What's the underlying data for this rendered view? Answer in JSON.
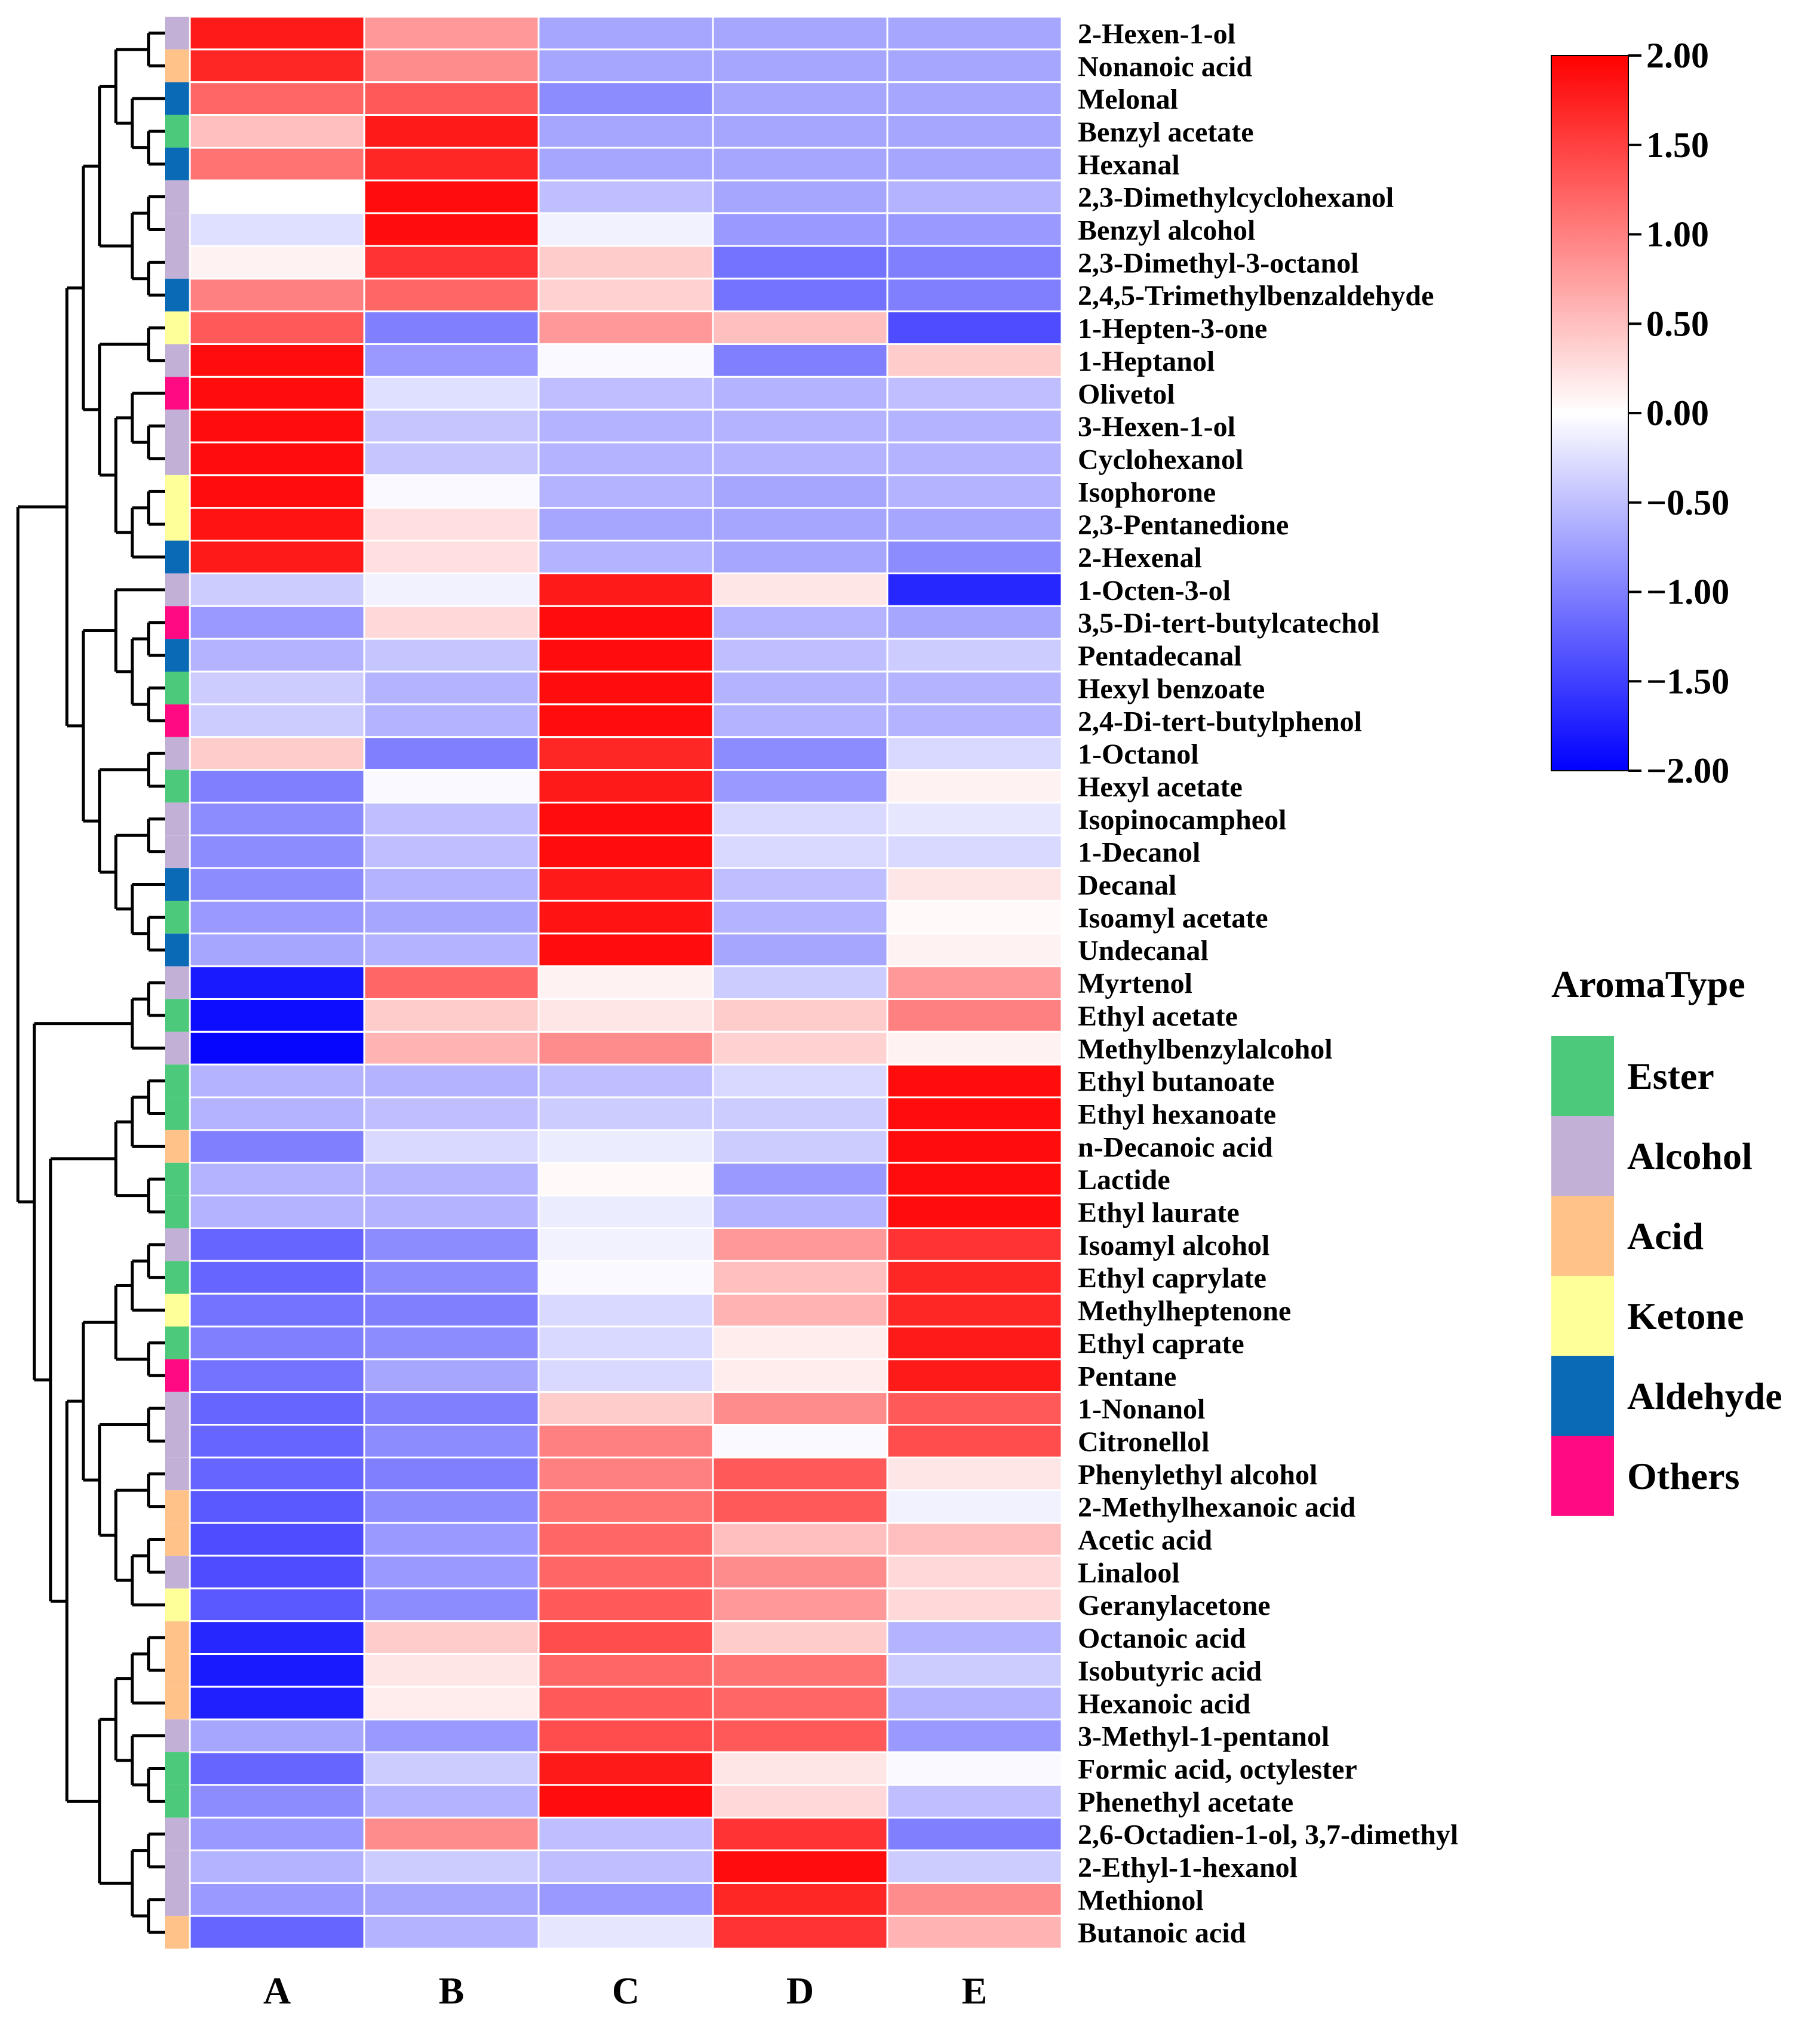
{
  "chart_data": {
    "type": "heatmap",
    "title": "",
    "columns": [
      "A",
      "B",
      "C",
      "D",
      "E"
    ],
    "colorbar": {
      "min": -2.0,
      "max": 2.0,
      "colors": [
        "#0000ff",
        "#ffffff",
        "#ff0000"
      ],
      "ticks": [
        "2.00",
        "1.50",
        "1.00",
        "0.50",
        "0.00",
        "−0.50",
        "−1.00",
        "−1.50",
        "−2.00"
      ],
      "tick_values": [
        2.0,
        1.5,
        1.0,
        0.5,
        0.0,
        -0.5,
        -1.0,
        -1.5,
        -2.0
      ]
    },
    "legend": {
      "title": "AromaType",
      "items": [
        {
          "label": "Ester",
          "color": "#4cc97a"
        },
        {
          "label": "Alcohol",
          "color": "#c3b0d6"
        },
        {
          "label": "Acid",
          "color": "#ffc38a"
        },
        {
          "label": "Ketone",
          "color": "#ffff99"
        },
        {
          "label": "Aldehyde",
          "color": "#0a6ab5"
        },
        {
          "label": "Others",
          "color": "#ff0a82"
        }
      ]
    },
    "rows": [
      {
        "label": "2-Hexen-1-ol",
        "type": "Alcohol",
        "values": [
          1.8,
          0.8,
          -0.7,
          -0.7,
          -0.7
        ]
      },
      {
        "label": "Nonanoic acid",
        "type": "Acid",
        "values": [
          1.7,
          0.9,
          -0.7,
          -0.7,
          -0.7
        ]
      },
      {
        "label": "Melonal",
        "type": "Aldehyde",
        "values": [
          1.2,
          1.3,
          -0.9,
          -0.7,
          -0.7
        ]
      },
      {
        "label": "Benzyl acetate",
        "type": "Ester",
        "values": [
          0.5,
          1.8,
          -0.7,
          -0.7,
          -0.7
        ]
      },
      {
        "label": "Hexanal",
        "type": "Aldehyde",
        "values": [
          1.1,
          1.7,
          -0.7,
          -0.7,
          -0.7
        ]
      },
      {
        "label": "2,3-Dimethylcyclohexanol",
        "type": "Alcohol",
        "values": [
          0.0,
          1.9,
          -0.5,
          -0.7,
          -0.6
        ]
      },
      {
        "label": "Benzyl alcohol",
        "type": "Alcohol",
        "values": [
          -0.25,
          1.9,
          -0.1,
          -0.8,
          -0.8
        ]
      },
      {
        "label": "2,3-Dimethyl-3-octanol",
        "type": "Alcohol",
        "values": [
          0.1,
          1.6,
          0.4,
          -1.1,
          -1.0
        ]
      },
      {
        "label": "2,4,5-Trimethylbenzaldehyde",
        "type": "Aldehyde",
        "values": [
          1.0,
          1.2,
          0.35,
          -1.1,
          -1.0
        ]
      },
      {
        "label": "1-Hepten-3-one",
        "type": "Ketone",
        "values": [
          1.3,
          -1.0,
          0.8,
          0.5,
          -1.4
        ]
      },
      {
        "label": "1-Heptanol",
        "type": "Alcohol",
        "values": [
          1.9,
          -0.8,
          -0.05,
          -1.0,
          0.4
        ]
      },
      {
        "label": "Olivetol",
        "type": "Others",
        "values": [
          1.9,
          -0.25,
          -0.5,
          -0.6,
          -0.5
        ]
      },
      {
        "label": "3-Hexen-1-ol",
        "type": "Alcohol",
        "values": [
          1.9,
          -0.45,
          -0.6,
          -0.6,
          -0.6
        ]
      },
      {
        "label": "Cyclohexanol",
        "type": "Alcohol",
        "values": [
          1.9,
          -0.45,
          -0.6,
          -0.6,
          -0.6
        ]
      },
      {
        "label": "Isophorone",
        "type": "Ketone",
        "values": [
          1.9,
          -0.05,
          -0.6,
          -0.7,
          -0.6
        ]
      },
      {
        "label": "2,3-Pentanedione",
        "type": "Ketone",
        "values": [
          1.85,
          0.25,
          -0.7,
          -0.7,
          -0.7
        ]
      },
      {
        "label": "2-Hexenal",
        "type": "Aldehyde",
        "values": [
          1.8,
          0.25,
          -0.6,
          -0.7,
          -0.9
        ]
      },
      {
        "label": "1-Octen-3-ol",
        "type": "Alcohol",
        "values": [
          -0.4,
          -0.1,
          1.8,
          0.2,
          -1.7
        ]
      },
      {
        "label": "3,5-Di-tert-butylcatechol",
        "type": "Others",
        "values": [
          -0.8,
          0.3,
          1.9,
          -0.6,
          -0.7
        ]
      },
      {
        "label": "Pentadecanal",
        "type": "Aldehyde",
        "values": [
          -0.6,
          -0.45,
          1.9,
          -0.5,
          -0.4
        ]
      },
      {
        "label": "Hexyl benzoate",
        "type": "Ester",
        "values": [
          -0.4,
          -0.6,
          1.9,
          -0.6,
          -0.6
        ]
      },
      {
        "label": "2,4-Di-tert-butylphenol",
        "type": "Others",
        "values": [
          -0.4,
          -0.6,
          1.9,
          -0.6,
          -0.6
        ]
      },
      {
        "label": "1-Octanol",
        "type": "Alcohol",
        "values": [
          0.4,
          -1.0,
          1.7,
          -0.9,
          -0.3
        ]
      },
      {
        "label": "Hexyl acetate",
        "type": "Ester",
        "values": [
          -1.0,
          -0.05,
          1.8,
          -0.8,
          0.1
        ]
      },
      {
        "label": "Isopinocampheol",
        "type": "Alcohol",
        "values": [
          -0.9,
          -0.5,
          1.9,
          -0.3,
          -0.2
        ]
      },
      {
        "label": "1-Decanol",
        "type": "Alcohol",
        "values": [
          -0.9,
          -0.5,
          1.9,
          -0.3,
          -0.3
        ]
      },
      {
        "label": "Decanal",
        "type": "Aldehyde",
        "values": [
          -0.9,
          -0.6,
          1.8,
          -0.5,
          0.2
        ]
      },
      {
        "label": "Isoamyl acetate",
        "type": "Ester",
        "values": [
          -0.8,
          -0.7,
          1.85,
          -0.6,
          0.05
        ]
      },
      {
        "label": "Undecanal",
        "type": "Aldehyde",
        "values": [
          -0.7,
          -0.6,
          1.9,
          -0.7,
          0.1
        ]
      },
      {
        "label": "Myrtenol",
        "type": "Alcohol",
        "values": [
          -1.8,
          1.2,
          0.1,
          -0.4,
          0.8
        ]
      },
      {
        "label": "Ethyl acetate",
        "type": "Ester",
        "values": [
          -1.9,
          0.4,
          0.2,
          0.4,
          1.0
        ]
      },
      {
        "label": "Methylbenzylalcohol",
        "type": "Alcohol",
        "values": [
          -1.95,
          0.6,
          0.9,
          0.35,
          0.1
        ]
      },
      {
        "label": "Ethyl butanoate",
        "type": "Ester",
        "values": [
          -0.6,
          -0.6,
          -0.5,
          -0.3,
          1.9
        ]
      },
      {
        "label": "Ethyl hexanoate",
        "type": "Ester",
        "values": [
          -0.6,
          -0.5,
          -0.4,
          -0.4,
          1.9
        ]
      },
      {
        "label": "n-Decanoic acid",
        "type": "Acid",
        "values": [
          -1.0,
          -0.3,
          -0.15,
          -0.4,
          1.9
        ]
      },
      {
        "label": "Lactide",
        "type": "Ester",
        "values": [
          -0.6,
          -0.6,
          0.05,
          -0.8,
          1.9
        ]
      },
      {
        "label": "Ethyl laurate",
        "type": "Ester",
        "values": [
          -0.6,
          -0.6,
          -0.15,
          -0.6,
          1.9
        ]
      },
      {
        "label": "Isoamyl alcohol",
        "type": "Alcohol",
        "values": [
          -1.2,
          -0.9,
          -0.1,
          0.8,
          1.6
        ]
      },
      {
        "label": "Ethyl caprylate",
        "type": "Ester",
        "values": [
          -1.2,
          -0.9,
          -0.05,
          0.5,
          1.7
        ]
      },
      {
        "label": "Methylheptenone",
        "type": "Ketone",
        "values": [
          -1.1,
          -1.0,
          -0.3,
          0.6,
          1.7
        ]
      },
      {
        "label": "Ethyl caprate",
        "type": "Ester",
        "values": [
          -1.0,
          -0.9,
          -0.3,
          0.15,
          1.8
        ]
      },
      {
        "label": "Pentane",
        "type": "Others",
        "values": [
          -1.1,
          -0.7,
          -0.3,
          0.15,
          1.8
        ]
      },
      {
        "label": "1-Nonanol",
        "type": "Alcohol",
        "values": [
          -1.2,
          -1.0,
          0.4,
          0.9,
          1.3
        ]
      },
      {
        "label": "Citronellol",
        "type": "Alcohol",
        "values": [
          -1.2,
          -0.9,
          1.0,
          -0.05,
          1.4
        ]
      },
      {
        "label": "Phenylethyl alcohol",
        "type": "Alcohol",
        "values": [
          -1.2,
          -1.0,
          1.0,
          1.3,
          0.2
        ]
      },
      {
        "label": "2-Methylhexanoic acid",
        "type": "Acid",
        "values": [
          -1.3,
          -0.9,
          1.1,
          1.3,
          -0.1
        ]
      },
      {
        "label": "Acetic acid",
        "type": "Acid",
        "values": [
          -1.4,
          -0.8,
          1.2,
          0.5,
          0.5
        ]
      },
      {
        "label": "Linalool",
        "type": "Alcohol",
        "values": [
          -1.4,
          -0.8,
          1.2,
          0.9,
          0.3
        ]
      },
      {
        "label": "Geranylacetone",
        "type": "Ketone",
        "values": [
          -1.3,
          -0.9,
          1.3,
          0.8,
          0.3
        ]
      },
      {
        "label": "Octanoic acid",
        "type": "Acid",
        "values": [
          -1.7,
          0.4,
          1.4,
          0.4,
          -0.6
        ]
      },
      {
        "label": "Isobutyric acid",
        "type": "Acid",
        "values": [
          -1.8,
          0.2,
          1.2,
          1.1,
          -0.4
        ]
      },
      {
        "label": "Hexanoic acid",
        "type": "Acid",
        "values": [
          -1.75,
          0.15,
          1.3,
          1.2,
          -0.6
        ]
      },
      {
        "label": "3-Methyl-1-pentanol",
        "type": "Alcohol",
        "values": [
          -0.7,
          -0.8,
          1.4,
          1.3,
          -0.8
        ]
      },
      {
        "label": "Formic acid, octylester",
        "type": "Ester",
        "values": [
          -1.2,
          -0.4,
          1.8,
          0.2,
          -0.05
        ]
      },
      {
        "label": "Phenethyl acetate",
        "type": "Ester",
        "values": [
          -0.9,
          -0.6,
          1.9,
          0.3,
          -0.5
        ]
      },
      {
        "label": "2,6-Octadien-1-ol, 3,7-dimethyl",
        "type": "Alcohol",
        "values": [
          -0.8,
          0.9,
          -0.5,
          1.6,
          -1.0
        ]
      },
      {
        "label": "2-Ethyl-1-hexanol",
        "type": "Alcohol",
        "values": [
          -0.6,
          -0.4,
          -0.5,
          1.9,
          -0.4
        ]
      },
      {
        "label": "Methionol",
        "type": "Alcohol",
        "values": [
          -0.8,
          -0.7,
          -0.8,
          1.7,
          0.9
        ]
      },
      {
        "label": "Butanoic acid",
        "type": "Acid",
        "values": [
          -1.2,
          -0.6,
          -0.2,
          1.6,
          0.6
        ]
      }
    ]
  }
}
